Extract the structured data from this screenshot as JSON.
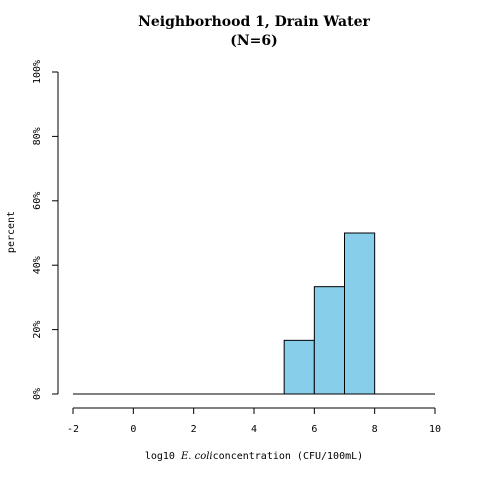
{
  "chart_data": {
    "type": "bar",
    "title_line1": "Neighborhood 1, Drain Water",
    "title_line2": "(N=6)",
    "xlabel_prefix": "log10 ",
    "xlabel_italic": "E. coli",
    "xlabel_suffix": "concentration (CFU/100mL)",
    "ylabel": "percent",
    "xlim": [
      -2,
      10
    ],
    "ylim": [
      0,
      100
    ],
    "x_ticks": [
      -2,
      0,
      2,
      4,
      6,
      8,
      10
    ],
    "x_tick_labels": [
      "-2",
      "0",
      "2",
      "4",
      "6",
      "8",
      "10"
    ],
    "y_ticks": [
      0,
      20,
      40,
      60,
      80,
      100
    ],
    "y_tick_labels": [
      "0%",
      "20%",
      "40%",
      "60%",
      "80%",
      "100%"
    ],
    "bin_width": 1,
    "bins": [
      {
        "start": -2,
        "end": -1,
        "value": 0
      },
      {
        "start": -1,
        "end": 0,
        "value": 0
      },
      {
        "start": 0,
        "end": 1,
        "value": 0
      },
      {
        "start": 1,
        "end": 2,
        "value": 0
      },
      {
        "start": 2,
        "end": 3,
        "value": 0
      },
      {
        "start": 3,
        "end": 4,
        "value": 0
      },
      {
        "start": 4,
        "end": 5,
        "value": 0
      },
      {
        "start": 5,
        "end": 6,
        "value": 16.67
      },
      {
        "start": 6,
        "end": 7,
        "value": 33.33
      },
      {
        "start": 7,
        "end": 8,
        "value": 50
      },
      {
        "start": 8,
        "end": 9,
        "value": 0
      },
      {
        "start": 9,
        "end": 10,
        "value": 0
      }
    ],
    "bar_color": "#87CEEB",
    "bar_edge_color": "#000000",
    "grid": false,
    "legend": "none"
  }
}
